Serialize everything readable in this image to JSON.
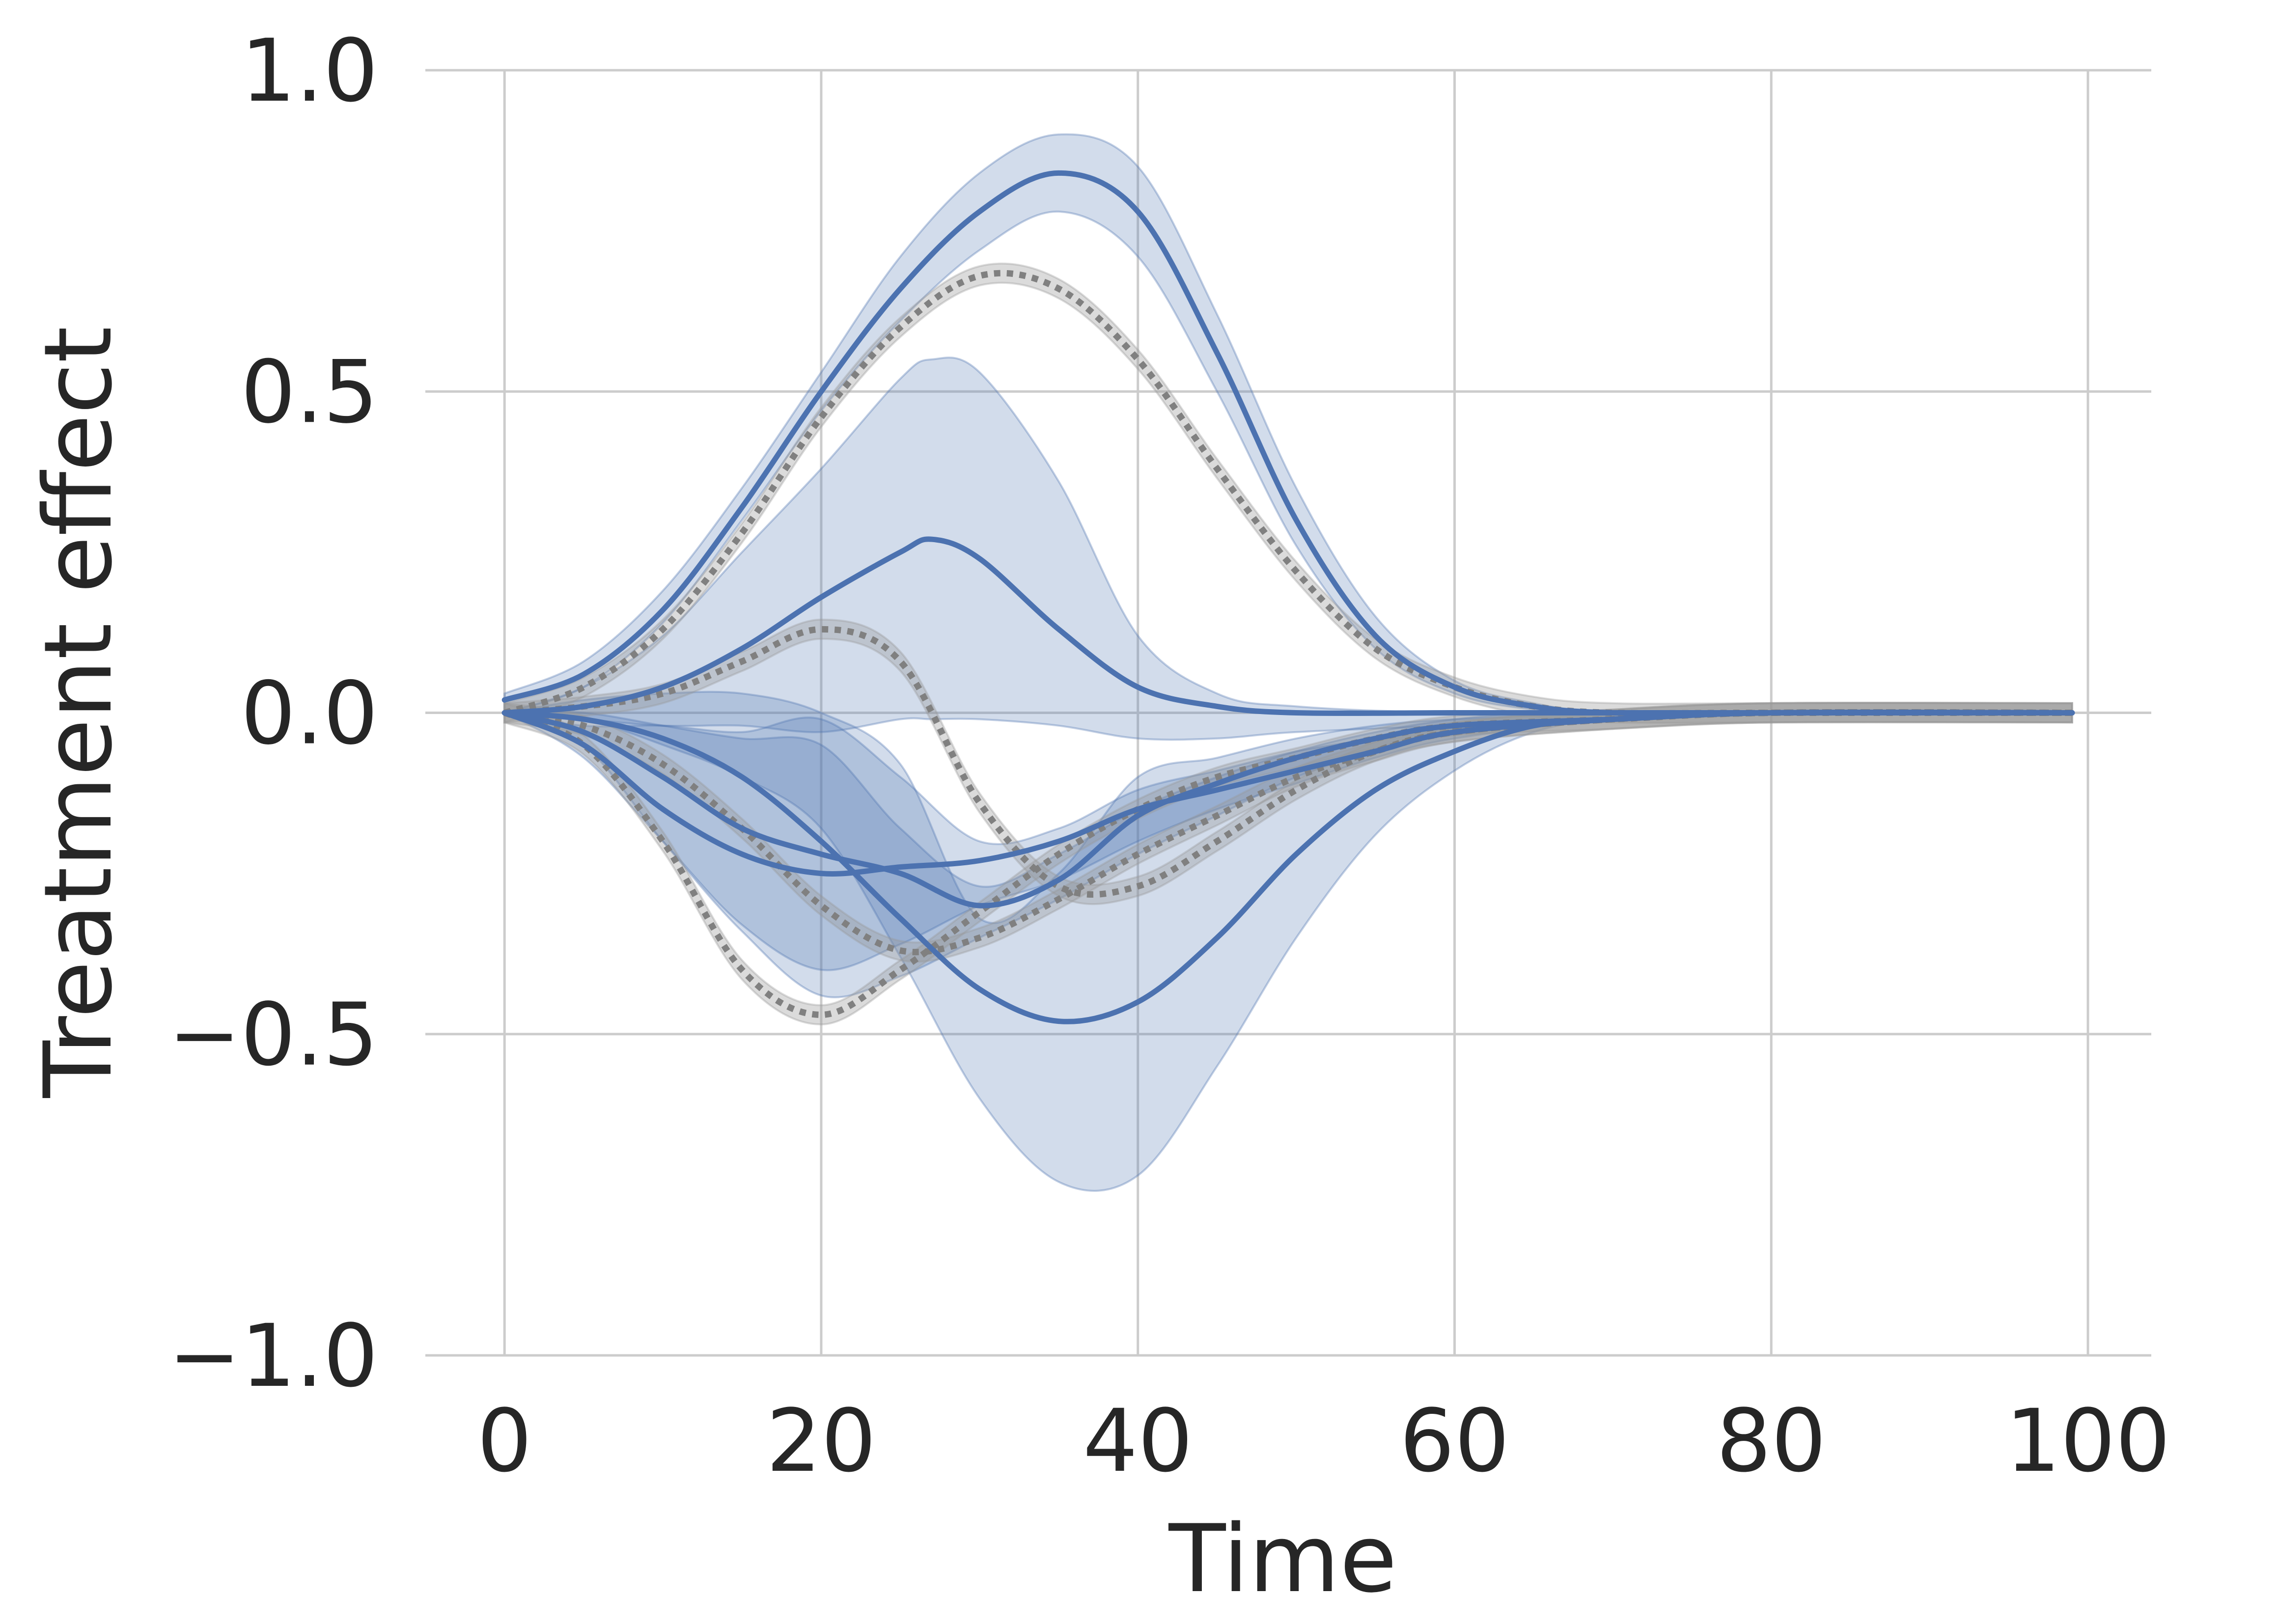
{
  "chart_data": {
    "type": "line",
    "title": "",
    "xlabel": "Time",
    "ylabel": "Treatment effect",
    "xlim": [
      -5,
      104
    ],
    "ylim": [
      -1.0,
      1.0
    ],
    "xticks": [
      0,
      20,
      40,
      60,
      80,
      100
    ],
    "xtick_labels": [
      "0",
      "20",
      "40",
      "60",
      "80",
      "100"
    ],
    "yticks": [
      -1.0,
      -0.5,
      0.0,
      0.5,
      1.0
    ],
    "ytick_labels": [
      "−1.0",
      "−0.5",
      "0.0",
      "0.5",
      "1.0"
    ],
    "grid": true,
    "legend": "none",
    "colors": {
      "estimate": "#4c72b0",
      "estimate_band": "#4c72b0",
      "truth": "#808080",
      "truth_band": "#999999",
      "grid": "#cccccc"
    },
    "series": [
      {
        "kind": "estimate",
        "x": [
          0,
          5,
          10,
          15,
          20,
          25,
          30,
          35,
          40,
          45,
          50,
          55,
          60,
          65,
          70,
          80,
          99
        ],
        "y": [
          0.02,
          0.06,
          0.16,
          0.32,
          0.5,
          0.66,
          0.78,
          0.84,
          0.78,
          0.56,
          0.3,
          0.12,
          0.04,
          0.01,
          0.0,
          0.0,
          0.0
        ],
        "lower": [
          0.0,
          0.04,
          0.14,
          0.3,
          0.47,
          0.61,
          0.72,
          0.78,
          0.71,
          0.5,
          0.26,
          0.1,
          0.03,
          0.005,
          0.0,
          0.0,
          0.0
        ],
        "upper": [
          0.03,
          0.08,
          0.19,
          0.35,
          0.53,
          0.71,
          0.84,
          0.9,
          0.85,
          0.62,
          0.35,
          0.15,
          0.05,
          0.015,
          0.0,
          0.0,
          0.0
        ]
      },
      {
        "kind": "estimate",
        "x": [
          0,
          5,
          10,
          15,
          20,
          25,
          27,
          30,
          35,
          40,
          45,
          50,
          60,
          70,
          80,
          99
        ],
        "y": [
          0.0,
          0.01,
          0.04,
          0.1,
          0.18,
          0.25,
          0.27,
          0.24,
          0.13,
          0.04,
          0.01,
          0.0,
          0.0,
          0.0,
          0.0,
          0.0
        ],
        "lower": [
          0.0,
          -0.01,
          -0.02,
          -0.02,
          -0.03,
          -0.01,
          -0.01,
          -0.01,
          -0.02,
          -0.04,
          -0.04,
          -0.03,
          -0.02,
          -0.01,
          0.0,
          0.0
        ],
        "upper": [
          0.0,
          0.04,
          0.12,
          0.25,
          0.38,
          0.52,
          0.55,
          0.53,
          0.36,
          0.12,
          0.03,
          0.01,
          0.0,
          0.0,
          0.0,
          0.0
        ]
      },
      {
        "kind": "estimate",
        "x": [
          0,
          5,
          10,
          15,
          20,
          25,
          30,
          35,
          40,
          45,
          50,
          55,
          60,
          70,
          80,
          99
        ],
        "y": [
          0.0,
          -0.03,
          -0.1,
          -0.18,
          -0.22,
          -0.25,
          -0.3,
          -0.26,
          -0.16,
          -0.11,
          -0.07,
          -0.04,
          -0.02,
          -0.01,
          0.0,
          0.0
        ],
        "lower": [
          0.0,
          -0.05,
          -0.2,
          -0.34,
          -0.44,
          -0.41,
          -0.35,
          -0.29,
          -0.22,
          -0.16,
          -0.1,
          -0.06,
          -0.03,
          -0.01,
          0.0,
          0.0
        ],
        "upper": [
          0.0,
          0.02,
          0.03,
          0.03,
          0.0,
          -0.08,
          -0.32,
          -0.25,
          -0.1,
          -0.07,
          -0.04,
          -0.02,
          -0.01,
          0.0,
          0.0,
          0.0
        ]
      },
      {
        "kind": "estimate",
        "x": [
          0,
          5,
          10,
          15,
          20,
          25,
          30,
          35,
          40,
          45,
          50,
          55,
          60,
          70,
          80,
          99
        ],
        "y": [
          0.0,
          -0.05,
          -0.15,
          -0.22,
          -0.25,
          -0.24,
          -0.23,
          -0.2,
          -0.15,
          -0.12,
          -0.09,
          -0.06,
          -0.03,
          -0.01,
          0.0,
          0.0
        ],
        "lower": [
          0.0,
          -0.07,
          -0.2,
          -0.33,
          -0.4,
          -0.36,
          -0.3,
          -0.26,
          -0.2,
          -0.15,
          -0.11,
          -0.07,
          -0.04,
          -0.01,
          0.0,
          0.0
        ],
        "upper": [
          0.0,
          -0.02,
          -0.02,
          -0.03,
          -0.01,
          -0.1,
          -0.2,
          -0.18,
          -0.12,
          -0.09,
          -0.06,
          -0.04,
          -0.02,
          -0.01,
          0.0,
          0.0
        ]
      },
      {
        "kind": "estimate",
        "x": [
          0,
          5,
          10,
          15,
          20,
          25,
          30,
          35,
          40,
          45,
          50,
          55,
          60,
          65,
          70,
          80,
          99
        ],
        "y": [
          0.0,
          -0.01,
          -0.04,
          -0.1,
          -0.2,
          -0.32,
          -0.43,
          -0.48,
          -0.45,
          -0.35,
          -0.22,
          -0.12,
          -0.06,
          -0.02,
          -0.01,
          0.0,
          0.0
        ],
        "lower": [
          0.0,
          -0.01,
          -0.05,
          -0.1,
          -0.18,
          -0.38,
          -0.6,
          -0.73,
          -0.72,
          -0.55,
          -0.35,
          -0.19,
          -0.09,
          -0.03,
          -0.01,
          0.0,
          0.0
        ],
        "upper": [
          0.0,
          0.0,
          -0.02,
          -0.04,
          -0.05,
          -0.18,
          -0.27,
          -0.22,
          -0.15,
          -0.1,
          -0.06,
          -0.03,
          -0.01,
          0.0,
          0.0,
          0.0,
          0.0
        ]
      },
      {
        "kind": "truth",
        "x": [
          0,
          5,
          10,
          15,
          20,
          25,
          30,
          35,
          40,
          45,
          50,
          55,
          60,
          65,
          70,
          80,
          99
        ],
        "y": [
          0.0,
          0.04,
          0.13,
          0.28,
          0.46,
          0.6,
          0.68,
          0.66,
          0.55,
          0.38,
          0.22,
          0.1,
          0.04,
          0.01,
          0.0,
          0.0,
          0.0
        ],
        "band": 0.015
      },
      {
        "kind": "truth",
        "x": [
          0,
          5,
          10,
          15,
          20,
          25,
          30,
          35,
          40,
          45,
          50,
          55,
          60,
          70,
          80,
          99
        ],
        "y": [
          0.0,
          0.01,
          0.03,
          0.08,
          0.13,
          0.08,
          -0.14,
          -0.27,
          -0.27,
          -0.2,
          -0.12,
          -0.06,
          -0.03,
          -0.01,
          0.0,
          0.0
        ],
        "band": 0.015
      },
      {
        "kind": "truth",
        "x": [
          0,
          5,
          10,
          15,
          20,
          25,
          30,
          35,
          40,
          45,
          50,
          55,
          60,
          70,
          80,
          99
        ],
        "y": [
          0.0,
          -0.05,
          -0.2,
          -0.4,
          -0.47,
          -0.4,
          -0.31,
          -0.22,
          -0.15,
          -0.1,
          -0.07,
          -0.04,
          -0.02,
          -0.01,
          0.0,
          0.0
        ],
        "band": 0.015
      },
      {
        "kind": "truth",
        "x": [
          0,
          5,
          10,
          15,
          20,
          25,
          30,
          35,
          40,
          45,
          50,
          55,
          60,
          70,
          80,
          99
        ],
        "y": [
          0.0,
          -0.02,
          -0.08,
          -0.18,
          -0.3,
          -0.37,
          -0.35,
          -0.29,
          -0.22,
          -0.16,
          -0.1,
          -0.06,
          -0.03,
          -0.01,
          0.0,
          0.0
        ],
        "band": 0.015
      }
    ]
  }
}
